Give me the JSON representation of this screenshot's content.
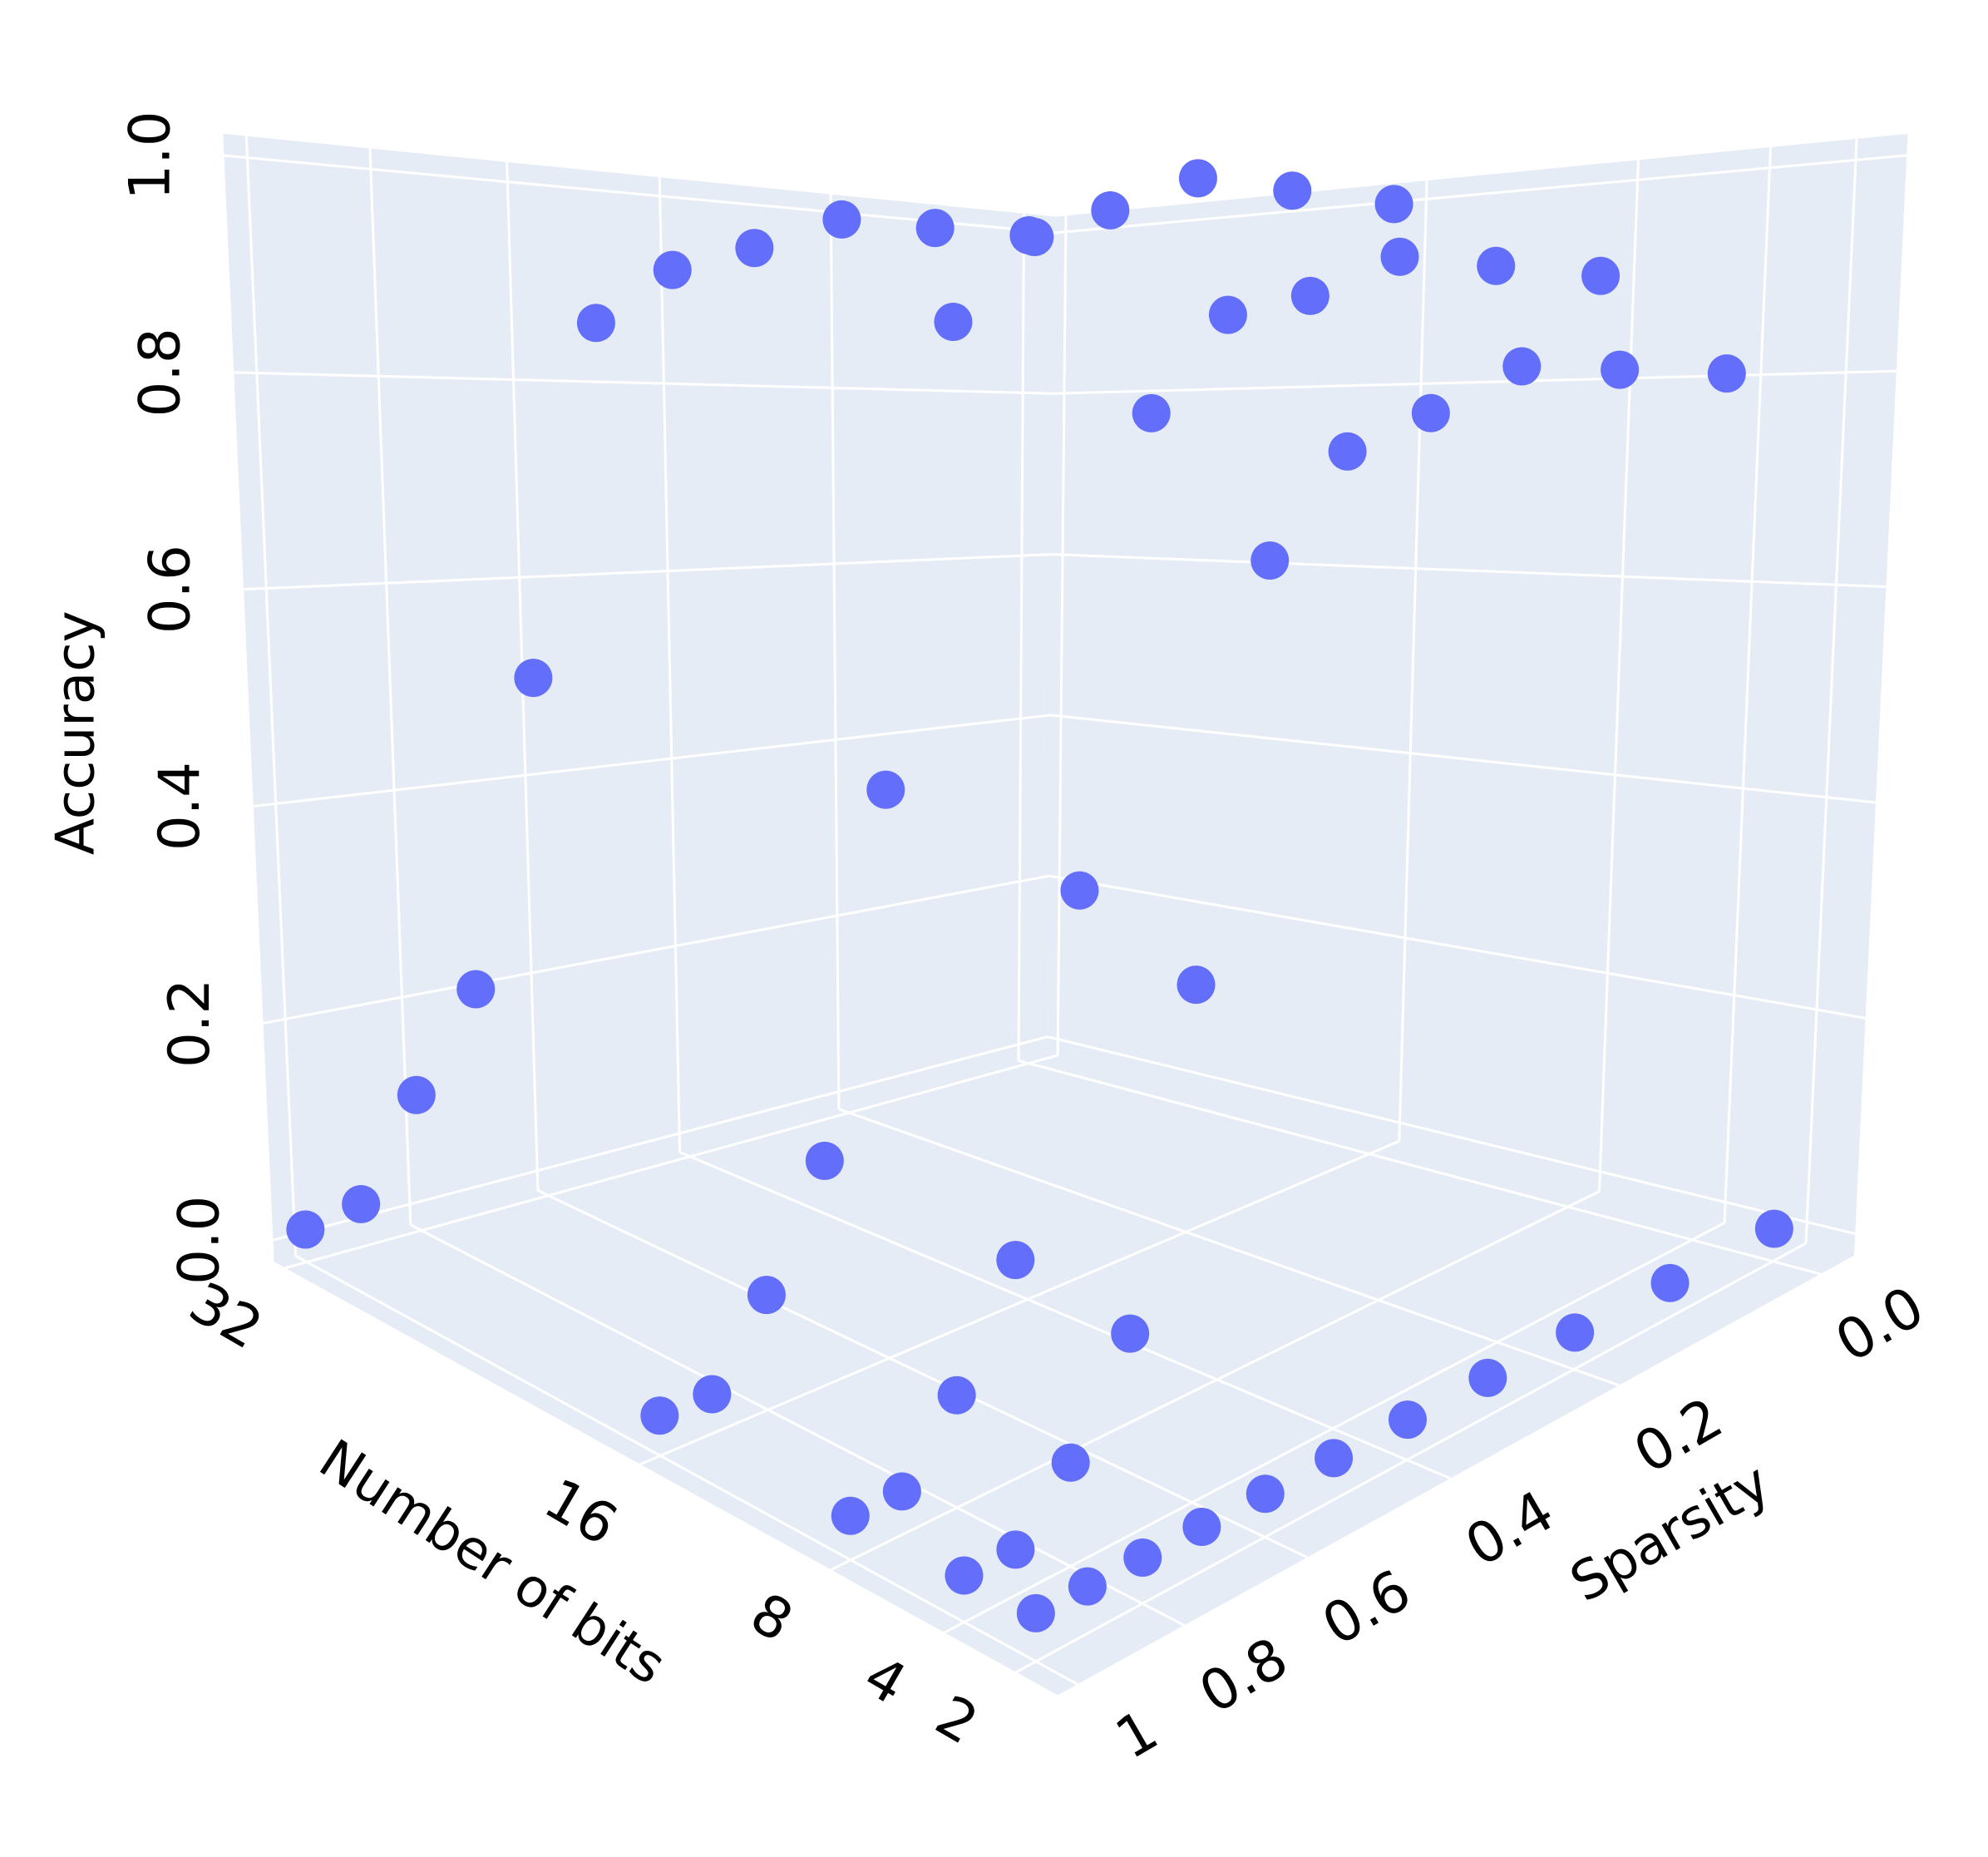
{
  "chart_data": {
    "type": "scatter3d",
    "x_title": "Number of bits",
    "y_title": "Sparsity",
    "z_title": "Accuracy",
    "x_scale": "sqrt",
    "xlim": [
      32.5,
      1.1
    ],
    "ylim": [
      1.04,
      -0.03
    ],
    "zlim": [
      -0.02,
      1.02
    ],
    "xticks": [
      32,
      16,
      8,
      4,
      2
    ],
    "yticks": [
      {
        "value": 0,
        "label": "0.0"
      },
      0.2,
      0.4,
      0.6,
      0.8,
      1
    ],
    "zticks": [
      {
        "value": 0,
        "label": "0.0"
      },
      0.2,
      0.4,
      0.6,
      0.8,
      {
        "value": 1,
        "label": "1.0"
      }
    ],
    "grid": true,
    "series": [
      {
        "color": "#636efa",
        "x": [
          32,
          32,
          32,
          32,
          32,
          32,
          32,
          32,
          32,
          32,
          32,
          16,
          16,
          16,
          16,
          16,
          16,
          16,
          16,
          16,
          16,
          16,
          8,
          8,
          8,
          8,
          8,
          8,
          8,
          8,
          8,
          8,
          8,
          4,
          4,
          4,
          4,
          4,
          4,
          4,
          4,
          4,
          4,
          4,
          2,
          2,
          2,
          2,
          2,
          2,
          2,
          2,
          2,
          2,
          2
        ],
        "y": [
          0,
          0.1,
          0.2,
          0.3,
          0.4,
          0.5,
          0.6,
          0.7,
          0.8,
          0.9,
          1,
          0,
          0.1,
          0.2,
          0.3,
          0.4,
          0.5,
          0.6,
          0.7,
          0.8,
          0.9,
          1,
          0,
          0.1,
          0.2,
          0.3,
          0.4,
          0.5,
          0.6,
          0.7,
          0.8,
          0.9,
          1,
          0,
          0.1,
          0.2,
          0.3,
          0.4,
          0.5,
          0.6,
          0.7,
          0.8,
          0.9,
          1,
          0,
          0.1,
          0.2,
          0.3,
          0.4,
          0.5,
          0.6,
          0.7,
          0.8,
          0.9,
          1
        ],
        "z": [
          0.99,
          0.99,
          0.99,
          0.95,
          0.92,
          0.86,
          0.5,
          0.2,
          0.11,
          0.02,
          0.01,
          0.99,
          0.99,
          0.99,
          0.95,
          0.92,
          0.84,
          0.45,
          0.16,
          0.07,
          0.01,
          0.01,
          0.9,
          0.9,
          0.9,
          0.86,
          0.84,
          0.76,
          0.4,
          0.14,
          0.06,
          0.01,
          0.01,
          0.8,
          0.8,
          0.8,
          0.76,
          0.73,
          0.65,
          0.35,
          0.12,
          0.05,
          0.01,
          0.01,
          0.01,
          0.01,
          0.01,
          0.01,
          0.01,
          0.01,
          0.01,
          0.01,
          0.01,
          0.01,
          0.01
        ]
      }
    ]
  }
}
